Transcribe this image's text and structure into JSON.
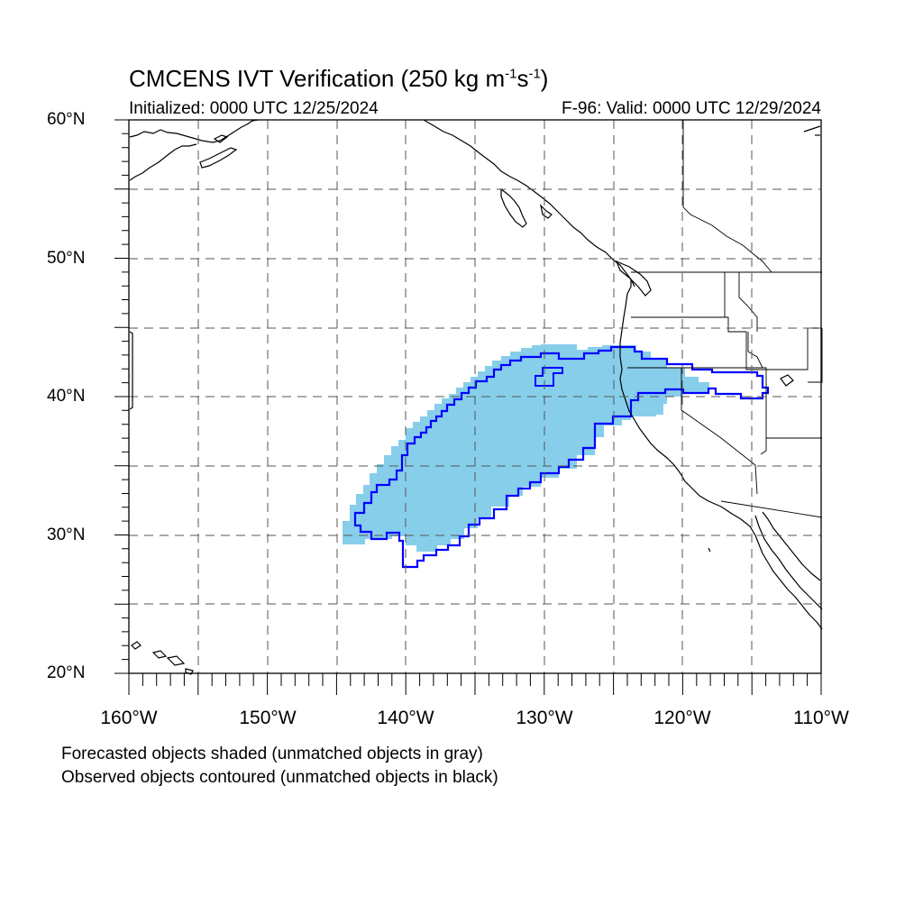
{
  "title": {
    "main": "CMCENS IVT Verification (250 kg m",
    "sup1": "-1",
    "mid": "s",
    "sup2": "-1",
    "close": ")"
  },
  "subtitle_left": "Initialized: 0000 UTC 12/25/2024",
  "subtitle_right": "F-96: Valid: 0000 UTC 12/29/2024",
  "lat_labels": [
    "60°N",
    "50°N",
    "40°N",
    "30°N",
    "20°N"
  ],
  "lon_labels": [
    "160°W",
    "150°W",
    "140°W",
    "130°W",
    "120°W",
    "110°W"
  ],
  "notes": {
    "forecast": "Forecasted objects shaded (unmatched objects in gray)",
    "observed": "Observed objects contoured (unmatched objects in black)"
  },
  "colors": {
    "forecast_fill": "#87ceeb",
    "observed_contour": "#0000ff",
    "coastline": "#000000",
    "grid": "#555555"
  }
}
